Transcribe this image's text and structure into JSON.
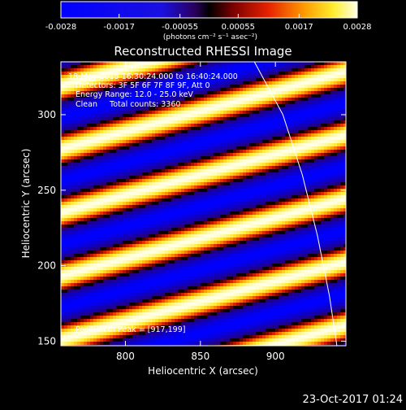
{
  "colorbar": {
    "ticks": [
      "-0.0028",
      "-0.0017",
      "-0.00055",
      "0.00055",
      "0.0017",
      "0.0028"
    ],
    "tick_values": [
      -0.0028,
      -0.0017,
      -0.00055,
      0.00055,
      0.0017,
      0.0028
    ],
    "range": [
      -0.0028,
      0.0028
    ],
    "unit_label": "(photons cm⁻² s⁻¹ asec⁻²)"
  },
  "chart_data": {
    "type": "heatmap",
    "title": "Reconstructed RHESSI Image",
    "xlabel": "Heliocentric X (arcsec)",
    "ylabel": "Heliocentric Y (arcsec)",
    "xlim": [
      757,
      947
    ],
    "ylim": [
      147,
      335
    ],
    "xticks": [
      800,
      850,
      900
    ],
    "yticks": [
      150,
      200,
      250,
      300
    ],
    "stripe_pattern": {
      "slope_y_per_x": 0.27,
      "period_y": 42,
      "bright_band_intercepts_y_at_x_757": [
        109,
        151,
        193,
        235,
        277,
        319
      ]
    },
    "peak_arcsec": [
      917,
      199
    ],
    "limb_curve": {
      "description": "solar limb",
      "points": [
        [
          886,
          335
        ],
        [
          905,
          300
        ],
        [
          918,
          260
        ],
        [
          928,
          220
        ],
        [
          936,
          180
        ],
        [
          941,
          147
        ]
      ]
    },
    "annotations": {
      "time_range": "18-May-2015 16:30:24.000 to 16:40:24.000",
      "detectors": "Detectors: 3F 5F 6F 7F 8F 9F, Att 0",
      "energy_range": "Energy Range: 12.0 - 25.0 keV",
      "clean_total": "Clean     Total counts: 3360",
      "peak": "Position of Peak = [917,199]"
    }
  },
  "timestamp": "23-Oct-2017 01:24",
  "colors": {
    "background": "#000000",
    "foreground": "#ffffff",
    "colormap": [
      "#0000ff",
      "#2a0060",
      "#000000",
      "#7a0000",
      "#e62200",
      "#ff9a00",
      "#ffee30",
      "#ffffe6"
    ]
  }
}
